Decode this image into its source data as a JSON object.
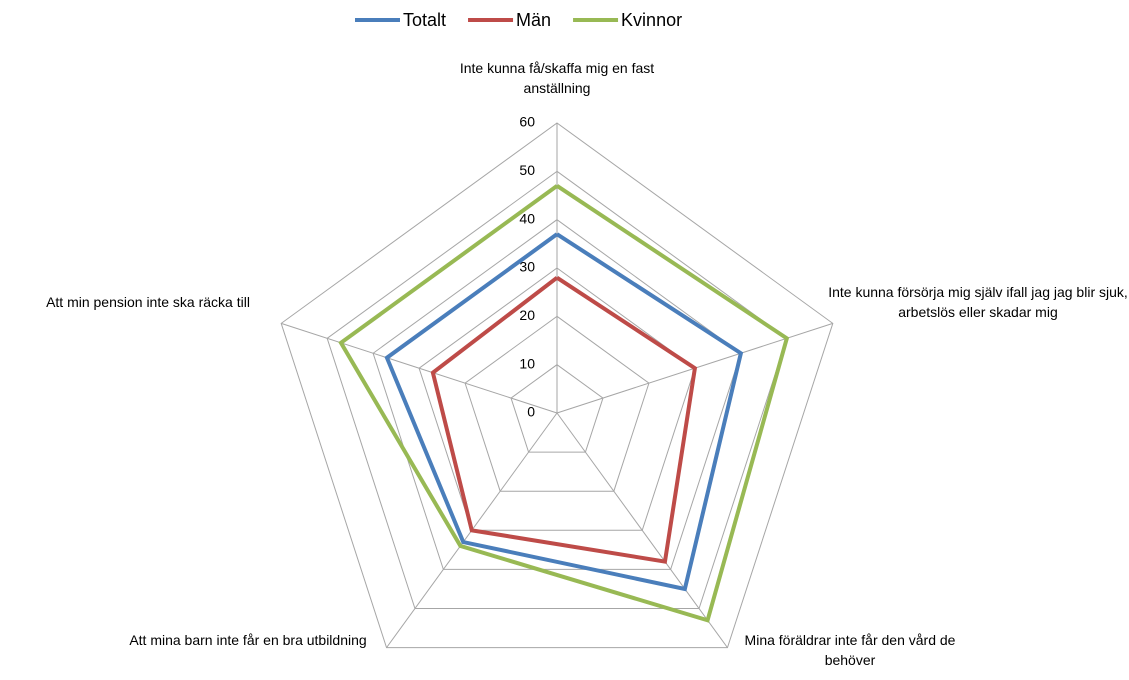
{
  "chart_data": {
    "type": "radar",
    "categories": [
      "Inte kunna få/skaffa mig en fast anställning",
      "Inte kunna försörja mig själv ifall jag jag blir sjuk, arbetslös eller skadar mig",
      "Mina föräldrar inte får den vård de behöver",
      "Att mina barn inte får en bra utbildning",
      "Att min pension inte ska räcka till"
    ],
    "series": [
      {
        "name": "Totalt",
        "color": "#4a7ebb",
        "values": [
          37,
          40,
          45,
          33,
          37
        ]
      },
      {
        "name": "Män",
        "color": "#be4b48",
        "values": [
          28,
          30,
          38,
          30,
          27
        ]
      },
      {
        "name": "Kvinnor",
        "color": "#98b954",
        "values": [
          47,
          50,
          53,
          34,
          47
        ]
      }
    ],
    "ylim": [
      0,
      60
    ],
    "yticks": [
      0,
      10,
      20,
      30,
      40,
      50,
      60
    ],
    "grid": true,
    "legend": "top"
  }
}
